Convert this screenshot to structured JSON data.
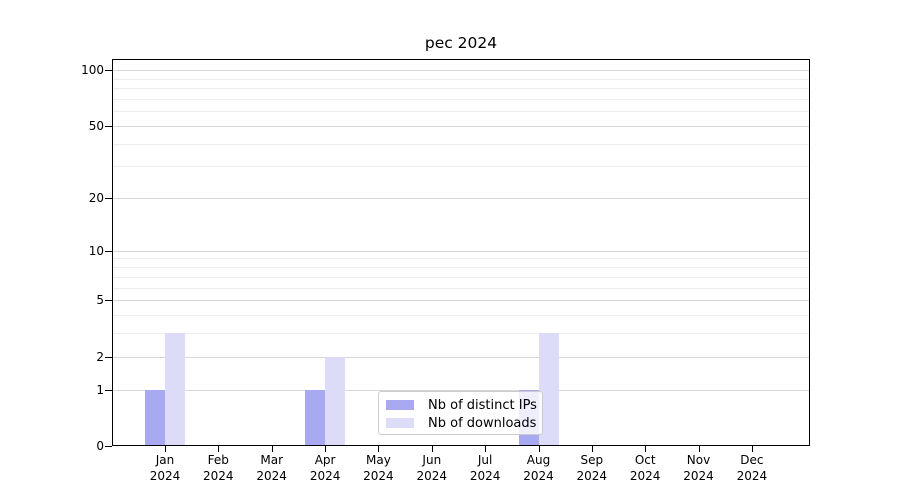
{
  "chart_data": {
    "type": "bar",
    "title": "pec 2024",
    "categories": [
      {
        "label": "Jan",
        "sub": "2024"
      },
      {
        "label": "Feb",
        "sub": "2024"
      },
      {
        "label": "Mar",
        "sub": "2024"
      },
      {
        "label": "Apr",
        "sub": "2024"
      },
      {
        "label": "May",
        "sub": "2024"
      },
      {
        "label": "Jun",
        "sub": "2024"
      },
      {
        "label": "Jul",
        "sub": "2024"
      },
      {
        "label": "Aug",
        "sub": "2024"
      },
      {
        "label": "Sep",
        "sub": "2024"
      },
      {
        "label": "Oct",
        "sub": "2024"
      },
      {
        "label": "Nov",
        "sub": "2024"
      },
      {
        "label": "Dec",
        "sub": "2024"
      }
    ],
    "series": [
      {
        "name": "Nb of distinct IPs",
        "color": "#a9a9f2",
        "values": [
          1,
          0,
          0,
          1,
          0,
          0,
          0,
          1,
          0,
          0,
          0,
          0
        ]
      },
      {
        "name": "Nb of downloads",
        "color": "#dcdcf8",
        "values": [
          3,
          0,
          0,
          2,
          0,
          0,
          0,
          3,
          0,
          0,
          0,
          0
        ]
      }
    ],
    "yscale": "log1p",
    "yticks": [
      0,
      1,
      2,
      5,
      10,
      20,
      50,
      100
    ],
    "minor_gridlines": [
      3,
      4,
      6,
      7,
      8,
      9,
      30,
      40,
      60,
      70,
      80,
      90
    ],
    "ylim": [
      0,
      115
    ],
    "grid": true,
    "legend_position": "lower center",
    "colors": {
      "major_grid": "#d7d7d7",
      "minor_grid": "#ececec",
      "spine": "#000000",
      "background": "#ffffff"
    }
  }
}
